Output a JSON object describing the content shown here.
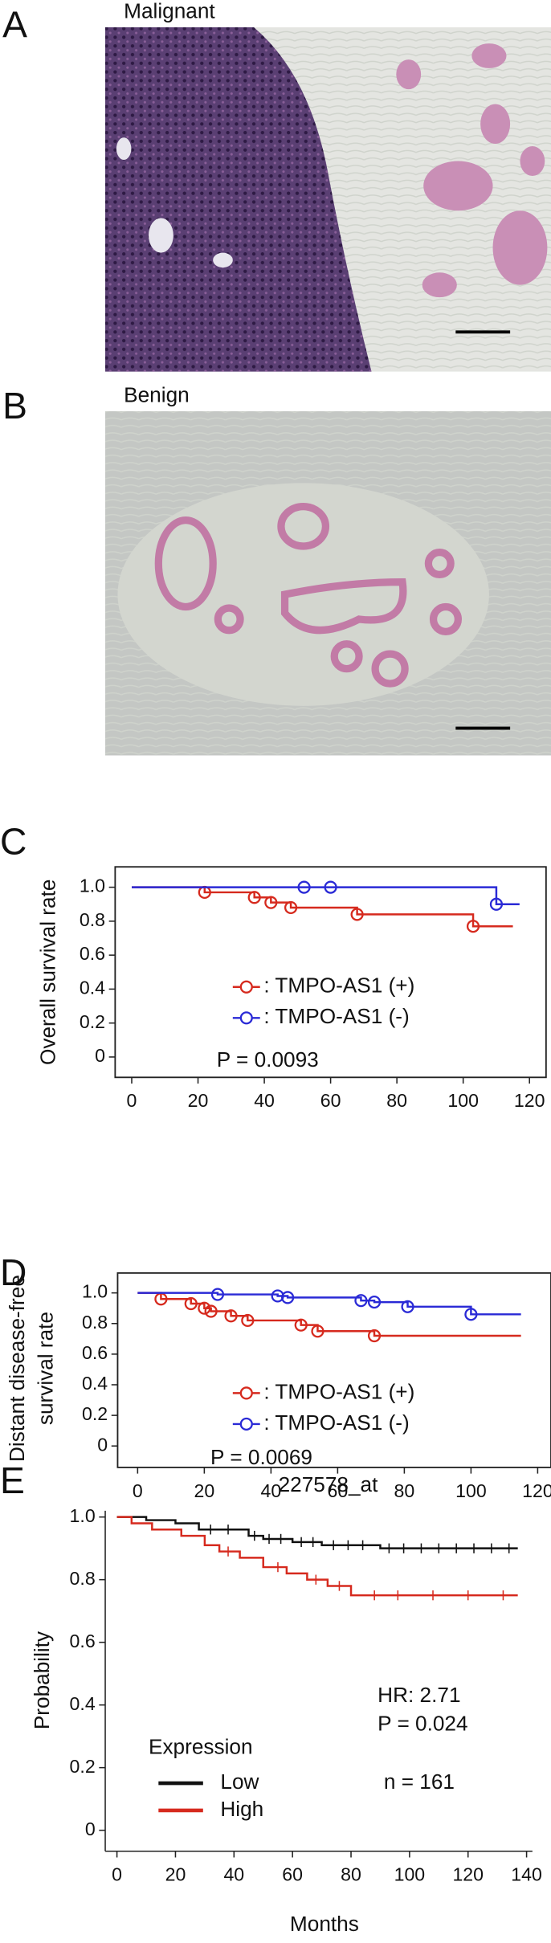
{
  "panels": [
    {
      "letter": "A",
      "label": "Malignant"
    },
    {
      "letter": "B",
      "label": "Benign"
    }
  ],
  "chart_data": [
    {
      "panel": "C",
      "type": "step",
      "marker": "circle",
      "ylabel": [
        "Overall survival rate"
      ],
      "annotation": "P = 0.0093",
      "xlim": [
        -5,
        125
      ],
      "ylim": [
        -0.12,
        1.12
      ],
      "xticks": [
        0,
        20,
        40,
        60,
        80,
        100,
        120
      ],
      "yticks": [
        0,
        {
          "value": 0.2,
          "label": "0.2"
        },
        {
          "value": 0.4,
          "label": "0.4"
        },
        {
          "value": 0.6,
          "label": "0.6"
        },
        {
          "value": 0.8,
          "label": "0.8"
        },
        {
          "value": 1,
          "label": "1.0"
        }
      ],
      "series": [
        {
          "name": ": TMPO-AS1 (+)",
          "color": "#d62a1e",
          "x": [
            0,
            22,
            37,
            42,
            48,
            68,
            103,
            115
          ],
          "values": [
            1,
            0.97,
            0.94,
            0.91,
            0.88,
            0.84,
            0.77,
            0.77
          ]
        },
        {
          "name": ": TMPO-AS1 (-)",
          "color": "#2a2ad6",
          "x": [
            0,
            52,
            60,
            110,
            117
          ],
          "values": [
            1,
            1,
            1,
            0.9,
            0.9
          ]
        }
      ]
    },
    {
      "panel": "D",
      "type": "step",
      "marker": "circle",
      "ylabel": [
        "Distant disease-free",
        "survival rate"
      ],
      "annotation": "P = 0.0069",
      "xlim": [
        -6,
        124
      ],
      "ylim": [
        -0.14,
        1.13
      ],
      "xticks": [
        0,
        20,
        40,
        60,
        80,
        100,
        120
      ],
      "yticks": [
        0,
        {
          "value": 0.2,
          "label": "0.2"
        },
        {
          "value": 0.4,
          "label": "0.4"
        },
        {
          "value": 0.6,
          "label": "0.6"
        },
        {
          "value": 0.8,
          "label": "0.8"
        },
        {
          "value": 1,
          "label": "1.0"
        }
      ],
      "series": [
        {
          "name": ": TMPO-AS1 (+)",
          "color": "#d62a1e",
          "x": [
            0,
            7,
            16,
            20,
            22,
            28,
            33,
            49,
            54,
            71,
            115
          ],
          "values": [
            1,
            0.96,
            0.93,
            0.9,
            0.88,
            0.85,
            0.82,
            0.79,
            0.75,
            0.72,
            0.72
          ]
        },
        {
          "name": ": TMPO-AS1 (-)",
          "color": "#2a2ad6",
          "x": [
            0,
            24,
            42,
            45,
            67,
            71,
            81,
            100,
            115
          ],
          "values": [
            1,
            0.99,
            0.98,
            0.97,
            0.95,
            0.94,
            0.91,
            0.86,
            0.86
          ]
        }
      ]
    },
    {
      "panel": "E",
      "type": "step",
      "marker": "tick",
      "title": "227578_at",
      "xlabel": "Months",
      "ylabel": [
        "Probability"
      ],
      "legend_title": "Expression",
      "annotations": [
        "HR: 2.71",
        "P = 0.024",
        "n = 161"
      ],
      "xlim": [
        -4,
        142
      ],
      "ylim": [
        -0.067,
        1.02
      ],
      "xticks": [
        0,
        20,
        40,
        60,
        80,
        100,
        120,
        140
      ],
      "yticks": [
        0,
        {
          "value": 0.2,
          "label": "0.2"
        },
        {
          "value": 0.4,
          "label": "0.4"
        },
        {
          "value": 0.6,
          "label": "0.6"
        },
        {
          "value": 0.8,
          "label": "0.8"
        },
        {
          "value": 1,
          "label": "1.0"
        }
      ],
      "series": [
        {
          "name": "Low",
          "color": "#111111",
          "x": [
            0,
            10,
            20,
            28,
            45,
            50,
            60,
            70,
            90,
            137
          ],
          "values": [
            1,
            0.99,
            0.98,
            0.96,
            0.94,
            0.93,
            0.92,
            0.91,
            0.9,
            0.9
          ],
          "censored": {
            "x": [
              32,
              38,
              47,
              52,
              56,
              63,
              67,
              74,
              79,
              84,
              93,
              98,
              104,
              110,
              116,
              122,
              128,
              134
            ],
            "values": [
              0.96,
              0.96,
              0.94,
              0.93,
              0.93,
              0.92,
              0.92,
              0.91,
              0.91,
              0.91,
              0.9,
              0.9,
              0.9,
              0.9,
              0.9,
              0.9,
              0.9,
              0.9
            ]
          }
        },
        {
          "name": "High",
          "color": "#d62a1e",
          "x": [
            0,
            5,
            12,
            22,
            30,
            35,
            42,
            50,
            58,
            65,
            72,
            80,
            137
          ],
          "values": [
            1,
            0.98,
            0.96,
            0.94,
            0.91,
            0.89,
            0.87,
            0.84,
            0.82,
            0.8,
            0.78,
            0.75,
            0.75
          ],
          "censored": {
            "x": [
              38,
              55,
              68,
              76,
              88,
              96,
              108,
              120,
              132
            ],
            "values": [
              0.89,
              0.84,
              0.8,
              0.78,
              0.75,
              0.75,
              0.75,
              0.75,
              0.75
            ]
          }
        }
      ]
    }
  ]
}
